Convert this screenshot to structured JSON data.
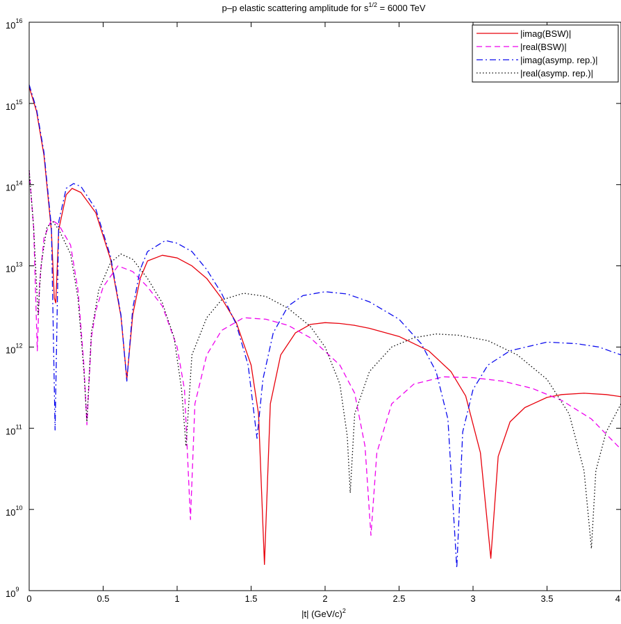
{
  "chart_data": {
    "type": "line",
    "title": {
      "main": "p–p elastic scattering amplitude for s",
      "sup": "1/2",
      "tail": " = 6000 TeV"
    },
    "xlabel": {
      "main": "|t|  (GeV/c)",
      "sup": "2"
    },
    "ylabel": "",
    "x_scale": "linear",
    "y_scale": "log",
    "xlim": [
      0,
      4
    ],
    "ylim": [
      1000000000.0,
      1e+16
    ],
    "x_ticks": [
      "0",
      "0.5",
      "1",
      "1.5",
      "2",
      "2.5",
      "3",
      "3.5",
      "4"
    ],
    "x_tick_values": [
      0,
      0.5,
      1,
      1.5,
      2,
      2.5,
      3,
      3.5,
      4
    ],
    "y_ticks": [
      {
        "base": "10",
        "exp": "9"
      },
      {
        "base": "10",
        "exp": "10"
      },
      {
        "base": "10",
        "exp": "11"
      },
      {
        "base": "10",
        "exp": "12"
      },
      {
        "base": "10",
        "exp": "13"
      },
      {
        "base": "10",
        "exp": "14"
      },
      {
        "base": "10",
        "exp": "15"
      },
      {
        "base": "10",
        "exp": "16"
      }
    ],
    "y_tick_values": [
      1000000000.0,
      10000000000.0,
      100000000000.0,
      1000000000000.0,
      10000000000000.0,
      100000000000000.0,
      1000000000000000.0,
      1e+16
    ],
    "grid": false,
    "legend_position": "top-right",
    "series": [
      {
        "name": "|imag(BSW)|",
        "color": "#e8000b",
        "style": "solid",
        "points": [
          [
            0,
            1600000000000000.0
          ],
          [
            0.05,
            800000000000000.0
          ],
          [
            0.1,
            230000000000000.0
          ],
          [
            0.15,
            27000000000000.0
          ],
          [
            0.17,
            4000000000000.0
          ],
          [
            0.18,
            3500000000000.0
          ],
          [
            0.2,
            28000000000000.0
          ],
          [
            0.25,
            75000000000000.0
          ],
          [
            0.29,
            90000000000000.0
          ],
          [
            0.35,
            80000000000000.0
          ],
          [
            0.45,
            45000000000000.0
          ],
          [
            0.55,
            12000000000000.0
          ],
          [
            0.62,
            2400000000000.0
          ],
          [
            0.66,
            400000000000.0
          ],
          [
            0.7,
            2500000000000.0
          ],
          [
            0.75,
            7000000000000.0
          ],
          [
            0.8,
            11500000000000.0
          ],
          [
            0.9,
            13500000000000.0
          ],
          [
            1.0,
            12500000000000.0
          ],
          [
            1.1,
            10000000000000.0
          ],
          [
            1.2,
            7000000000000.0
          ],
          [
            1.3,
            4000000000000.0
          ],
          [
            1.4,
            2000000000000.0
          ],
          [
            1.5,
            600000000000.0
          ],
          [
            1.55,
            150000000000.0
          ],
          [
            1.59,
            2100000000.0
          ],
          [
            1.63,
            200000000000.0
          ],
          [
            1.7,
            800000000000.0
          ],
          [
            1.8,
            1500000000000.0
          ],
          [
            1.9,
            1900000000000.0
          ],
          [
            2.0,
            2000000000000.0
          ],
          [
            2.1,
            1950000000000.0
          ],
          [
            2.2,
            1850000000000.0
          ],
          [
            2.3,
            1700000000000.0
          ],
          [
            2.5,
            1350000000000.0
          ],
          [
            2.7,
            900000000000.0
          ],
          [
            2.85,
            500000000000.0
          ],
          [
            2.95,
            250000000000.0
          ],
          [
            3.05,
            50000000000.0
          ],
          [
            3.12,
            2500000000.0
          ],
          [
            3.17,
            45000000000.0
          ],
          [
            3.25,
            120000000000.0
          ],
          [
            3.35,
            180000000000.0
          ],
          [
            3.5,
            240000000000.0
          ],
          [
            3.6,
            260000000000.0
          ],
          [
            3.75,
            270000000000.0
          ],
          [
            3.9,
            260000000000.0
          ],
          [
            4.0,
            245000000000.0
          ]
        ]
      },
      {
        "name": "|real(BSW)|",
        "color": "#ee00ee",
        "style": "dashed",
        "points": [
          [
            0,
            150000000000000.0
          ],
          [
            0.03,
            30000000000000.0
          ],
          [
            0.055,
            900000000000.0
          ],
          [
            0.07,
            6000000000000.0
          ],
          [
            0.1,
            22000000000000.0
          ],
          [
            0.15,
            37000000000000.0
          ],
          [
            0.2,
            32000000000000.0
          ],
          [
            0.28,
            18000000000000.0
          ],
          [
            0.33,
            5000000000000.0
          ],
          [
            0.37,
            600000000000.0
          ],
          [
            0.39,
            110000000000.0
          ],
          [
            0.42,
            1300000000000.0
          ],
          [
            0.45,
            2800000000000.0
          ],
          [
            0.5,
            5500000000000.0
          ],
          [
            0.6,
            10000000000000.0
          ],
          [
            0.7,
            8500000000000.0
          ],
          [
            0.8,
            5500000000000.0
          ],
          [
            0.9,
            3200000000000.0
          ],
          [
            1.0,
            1000000000000.0
          ],
          [
            1.05,
            300000000000.0
          ],
          [
            1.09,
            7500000000.0
          ],
          [
            1.12,
            200000000000.0
          ],
          [
            1.2,
            800000000000.0
          ],
          [
            1.3,
            1600000000000.0
          ],
          [
            1.45,
            2300000000000.0
          ],
          [
            1.6,
            2200000000000.0
          ],
          [
            1.75,
            1850000000000.0
          ],
          [
            1.9,
            1300000000000.0
          ],
          [
            2.1,
            600000000000.0
          ],
          [
            2.2,
            270000000000.0
          ],
          [
            2.27,
            60000000000.0
          ],
          [
            2.31,
            4800000000.0
          ],
          [
            2.35,
            50000000000.0
          ],
          [
            2.45,
            200000000000.0
          ],
          [
            2.6,
            350000000000.0
          ],
          [
            2.8,
            430000000000.0
          ],
          [
            3.0,
            420000000000.0
          ],
          [
            3.2,
            380000000000.0
          ],
          [
            3.4,
            310000000000.0
          ],
          [
            3.6,
            220000000000.0
          ],
          [
            3.8,
            130000000000.0
          ],
          [
            4.0,
            55000000000.0
          ]
        ]
      },
      {
        "name": "|imag(asymp. rep.)|",
        "color": "#0a0aee",
        "style": "dashdot",
        "points": [
          [
            0,
            1700000000000000.0
          ],
          [
            0.05,
            850000000000000.0
          ],
          [
            0.1,
            250000000000000.0
          ],
          [
            0.15,
            30000000000000.0
          ],
          [
            0.175,
            95000000000.0
          ],
          [
            0.2,
            35000000000000.0
          ],
          [
            0.25,
            90000000000000.0
          ],
          [
            0.3,
            103000000000000.0
          ],
          [
            0.35,
            95000000000000.0
          ],
          [
            0.45,
            50000000000000.0
          ],
          [
            0.55,
            13000000000000.0
          ],
          [
            0.62,
            2500000000000.0
          ],
          [
            0.66,
            380000000000.0
          ],
          [
            0.7,
            3000000000000.0
          ],
          [
            0.75,
            9000000000000.0
          ],
          [
            0.8,
            15000000000000.0
          ],
          [
            0.92,
            20500000000000.0
          ],
          [
            1.0,
            19000000000000.0
          ],
          [
            1.1,
            15000000000000.0
          ],
          [
            1.2,
            9000000000000.0
          ],
          [
            1.3,
            4600000000000.0
          ],
          [
            1.4,
            1900000000000.0
          ],
          [
            1.48,
            600000000000.0
          ],
          [
            1.54,
            75000000000.0
          ],
          [
            1.58,
            400000000000.0
          ],
          [
            1.65,
            1500000000000.0
          ],
          [
            1.75,
            3200000000000.0
          ],
          [
            1.85,
            4300000000000.0
          ],
          [
            2.0,
            4800000000000.0
          ],
          [
            2.15,
            4500000000000.0
          ],
          [
            2.3,
            3600000000000.0
          ],
          [
            2.5,
            2200000000000.0
          ],
          [
            2.65,
            1100000000000.0
          ],
          [
            2.75,
            500000000000.0
          ],
          [
            2.83,
            130000000000.0
          ],
          [
            2.89,
            1900000000.0
          ],
          [
            2.93,
            90000000000.0
          ],
          [
            3.0,
            300000000000.0
          ],
          [
            3.1,
            600000000000.0
          ],
          [
            3.25,
            900000000000.0
          ],
          [
            3.5,
            1150000000000.0
          ],
          [
            3.7,
            1100000000000.0
          ],
          [
            3.85,
            1000000000000.0
          ],
          [
            4.0,
            800000000000.0
          ]
        ]
      },
      {
        "name": "|real(asymp. rep.)|",
        "color": "#000000",
        "style": "dotted",
        "points": [
          [
            0,
            150000000000000.0
          ],
          [
            0.03,
            30000000000000.0
          ],
          [
            0.06,
            2500000000000.0
          ],
          [
            0.08,
            10000000000000.0
          ],
          [
            0.12,
            30000000000000.0
          ],
          [
            0.16,
            35000000000000.0
          ],
          [
            0.2,
            28000000000000.0
          ],
          [
            0.28,
            14000000000000.0
          ],
          [
            0.33,
            4000000000000.0
          ],
          [
            0.37,
            500000000000.0
          ],
          [
            0.39,
            120000000000.0
          ],
          [
            0.42,
            1500000000000.0
          ],
          [
            0.47,
            5000000000000.0
          ],
          [
            0.55,
            11000000000000.0
          ],
          [
            0.62,
            14000000000000.0
          ],
          [
            0.7,
            12000000000000.0
          ],
          [
            0.8,
            7000000000000.0
          ],
          [
            0.9,
            3500000000000.0
          ],
          [
            0.98,
            1300000000000.0
          ],
          [
            1.03,
            300000000000.0
          ],
          [
            1.06,
            60000000000.0
          ],
          [
            1.1,
            800000000000.0
          ],
          [
            1.2,
            2300000000000.0
          ],
          [
            1.3,
            3800000000000.0
          ],
          [
            1.45,
            4600000000000.0
          ],
          [
            1.6,
            4200000000000.0
          ],
          [
            1.75,
            3000000000000.0
          ],
          [
            1.9,
            1800000000000.0
          ],
          [
            2.0,
            1000000000000.0
          ],
          [
            2.1,
            350000000000.0
          ],
          [
            2.15,
            80000000000.0
          ],
          [
            2.17,
            16000000000.0
          ],
          [
            2.2,
            150000000000.0
          ],
          [
            2.3,
            500000000000.0
          ],
          [
            2.45,
            1000000000000.0
          ],
          [
            2.6,
            1300000000000.0
          ],
          [
            2.75,
            1450000000000.0
          ],
          [
            2.9,
            1400000000000.0
          ],
          [
            3.1,
            1200000000000.0
          ],
          [
            3.3,
            800000000000.0
          ],
          [
            3.5,
            400000000000.0
          ],
          [
            3.65,
            150000000000.0
          ],
          [
            3.75,
            30000000000.0
          ],
          [
            3.8,
            3300000000.0
          ],
          [
            3.83,
            30000000000.0
          ],
          [
            3.9,
            90000000000.0
          ],
          [
            4.0,
            200000000000.0
          ]
        ]
      }
    ]
  }
}
